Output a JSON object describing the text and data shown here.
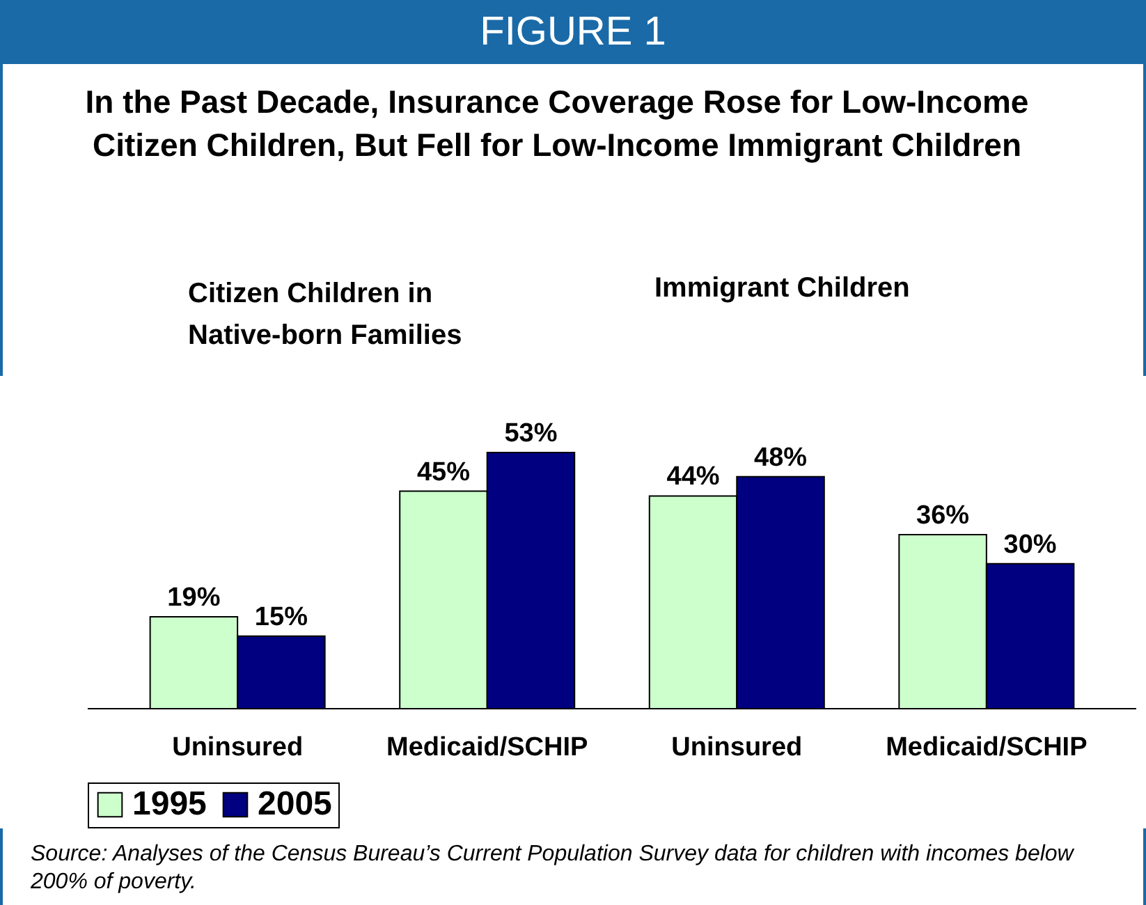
{
  "chart_data": {
    "type": "bar",
    "title": "FIGURE 1",
    "subtitle": "In the Past Decade, Insurance Coverage Rose for Low-Income Citizen Children, But Fell for Low-Income Immigrant Children",
    "categories": [
      "Uninsured",
      "Medicaid/SCHIP",
      "Uninsured",
      "Medicaid/SCHIP"
    ],
    "series": [
      {
        "name": "1995",
        "color": "#ccffcc",
        "values": [
          19,
          45,
          44,
          36
        ],
        "value_labels": [
          "19%",
          "45%",
          "44%",
          "36%"
        ]
      },
      {
        "name": "2005",
        "color": "#000080",
        "values": [
          15,
          53,
          48,
          30
        ],
        "value_labels": [
          "15%",
          "53%",
          "48%",
          "30%"
        ]
      }
    ],
    "legend": "bottom",
    "annotations": [
      "Citizen Children in Native-born Families",
      "Immigrant Children",
      "Source: Analyses of the Census Bureau’s Current Population Survey data for children with incomes below 200% of poverty."
    ]
  }
}
